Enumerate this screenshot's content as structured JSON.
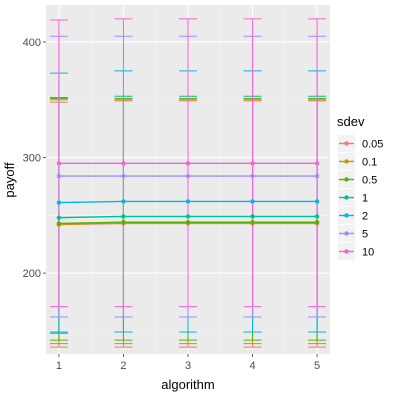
{
  "chart_data": {
    "type": "line",
    "xlabel": "algorithm",
    "ylabel": "payoff",
    "x": [
      1,
      2,
      3,
      4,
      5
    ],
    "xlim": [
      0.8,
      5.2
    ],
    "ylim": [
      130,
      432
    ],
    "yticks": [
      200,
      300,
      400
    ],
    "grid": true,
    "legend": {
      "title": "sdev",
      "placement": "right"
    },
    "series": [
      {
        "name": "0.05",
        "color": "#F8766D",
        "values": [
          242,
          243,
          243,
          243,
          243
        ],
        "lower": [
          136,
          136,
          136,
          136,
          136
        ],
        "upper": [
          348,
          349,
          349,
          349,
          349
        ]
      },
      {
        "name": "0.1",
        "color": "#C49A00",
        "values": [
          242,
          244,
          244,
          244,
          244
        ],
        "lower": [
          139,
          139,
          139,
          139,
          139
        ],
        "upper": [
          350,
          350,
          350,
          350,
          350
        ]
      },
      {
        "name": "0.5",
        "color": "#53B400",
        "values": [
          243,
          244,
          244,
          244,
          244
        ],
        "lower": [
          142,
          142,
          142,
          142,
          142
        ],
        "upper": [
          351,
          351,
          351,
          351,
          351
        ]
      },
      {
        "name": "1",
        "color": "#00C094",
        "values": [
          248,
          249,
          249,
          249,
          249
        ],
        "lower": [
          148,
          149,
          149,
          149,
          149
        ],
        "upper": [
          352,
          353,
          353,
          353,
          353
        ]
      },
      {
        "name": "2",
        "color": "#00B6EB",
        "values": [
          261,
          262,
          262,
          262,
          262
        ],
        "lower": [
          149,
          149,
          149,
          149,
          149
        ],
        "upper": [
          373,
          375,
          375,
          375,
          375
        ]
      },
      {
        "name": "5",
        "color": "#A58AFF",
        "values": [
          284,
          284,
          284,
          284,
          284
        ],
        "lower": [
          162,
          162,
          162,
          162,
          162
        ],
        "upper": [
          405,
          405,
          405,
          405,
          405
        ]
      },
      {
        "name": "10",
        "color": "#FB61D7",
        "values": [
          295,
          295,
          295,
          295,
          295
        ],
        "lower": [
          171,
          171,
          171,
          171,
          171
        ],
        "upper": [
          419,
          420,
          420,
          420,
          420
        ]
      }
    ]
  }
}
